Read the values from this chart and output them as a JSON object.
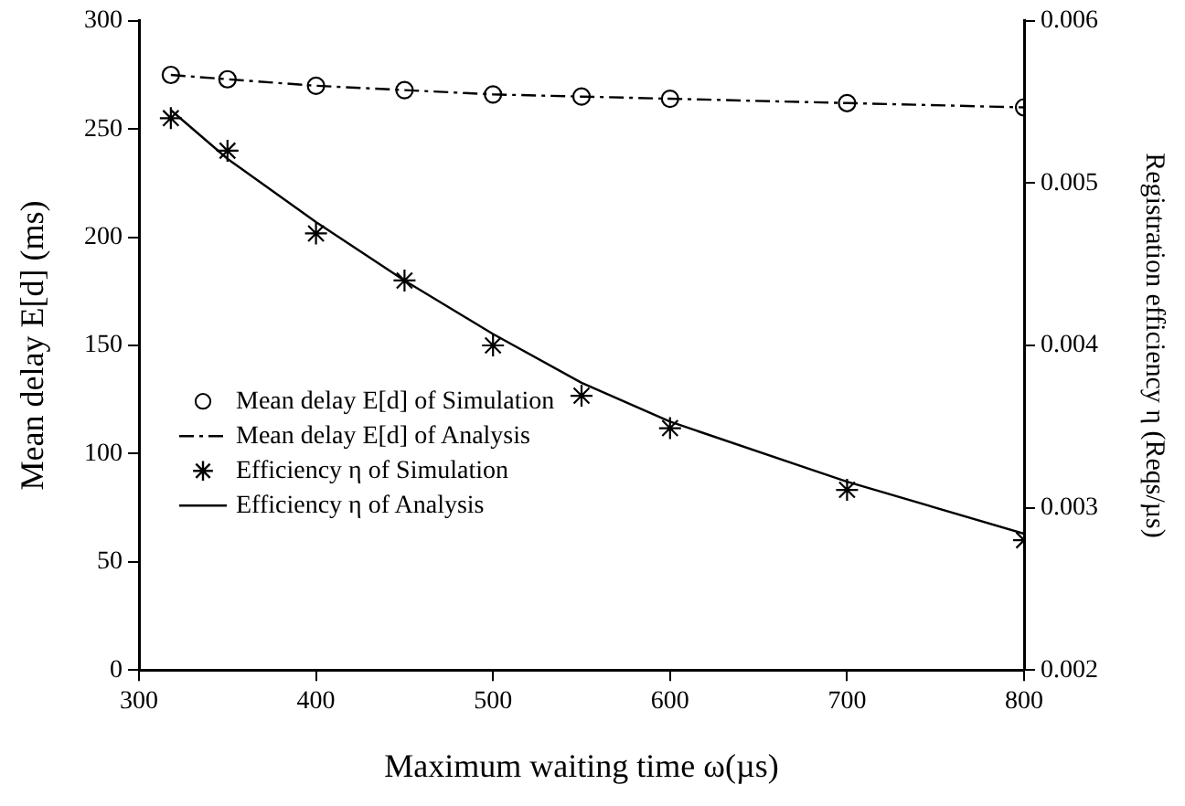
{
  "chart_data": {
    "type": "line",
    "xlabel": "Maximum waiting time ω(µs)",
    "ylabel": "Mean delay E[d] (ms)",
    "y2label": "Registration efficiency η (Reqs/µs)",
    "xlim": [
      300,
      800
    ],
    "xticks": [
      300,
      400,
      500,
      600,
      700,
      800
    ],
    "ylim": [
      0,
      300
    ],
    "yticks": [
      0,
      50,
      100,
      150,
      200,
      250,
      300
    ],
    "y2lim": [
      0.002,
      0.006
    ],
    "y2ticks": [
      0.002,
      0.003,
      0.004,
      0.005,
      0.006
    ],
    "grid": false,
    "legend": "bottom left",
    "series": [
      {
        "name": "Mean delay E[d] of Simulation",
        "type": "scatter",
        "marker": "circle",
        "color": "#000000",
        "x": [
          318,
          350,
          400,
          450,
          500,
          550,
          600,
          700,
          800
        ],
        "values": [
          275,
          273,
          270,
          268,
          266,
          265,
          264,
          262,
          260
        ]
      },
      {
        "name": "Mean delay E[d] of Analysis",
        "type": "line",
        "marker": "none",
        "line_style": "dashdot",
        "color": "#000000",
        "x": [
          318,
          350,
          400,
          450,
          500,
          550,
          600,
          700,
          800
        ],
        "values": [
          275,
          273,
          270,
          268,
          266,
          265,
          264,
          262,
          260
        ]
      },
      {
        "name": "Efficiency η of Simulation",
        "type": "scatter",
        "marker": "cross",
        "axis": "y2",
        "color": "#000000",
        "x": [
          318,
          350,
          400,
          450,
          500,
          550,
          600,
          700,
          800
        ],
        "values": [
          0.0054,
          0.0052,
          0.00469,
          0.0044,
          0.004,
          0.00369,
          0.00349,
          0.00311,
          0.0028
        ]
      },
      {
        "name": "Efficiency η of Analysis",
        "type": "line",
        "marker": "none",
        "line_style": "solid",
        "axis": "y2",
        "color": "#000000",
        "x": [
          318,
          350,
          400,
          450,
          500,
          550,
          600,
          700,
          800
        ],
        "values": [
          0.00545,
          0.00515,
          0.00476,
          0.0044,
          0.00407,
          0.00377,
          0.00353,
          0.00316,
          0.00284
        ]
      }
    ]
  }
}
